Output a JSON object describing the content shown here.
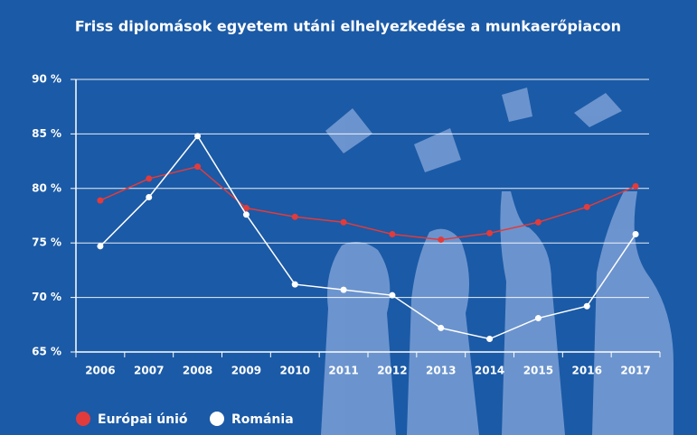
{
  "chart_data": {
    "type": "line",
    "title": "Friss diplomások egyetem utáni elhelyezkedése a munkaerőpiacon",
    "categories": [
      "2006",
      "2007",
      "2008",
      "2009",
      "2010",
      "2011",
      "2012",
      "2013",
      "2014",
      "2015",
      "2016",
      "2017"
    ],
    "series": [
      {
        "name": "Európai únió",
        "color": "#e23b3b",
        "values": [
          78.9,
          80.9,
          82.0,
          78.2,
          77.4,
          76.9,
          75.8,
          75.3,
          75.9,
          76.9,
          78.3,
          80.2
        ]
      },
      {
        "name": "Románia",
        "color": "#ffffff",
        "values": [
          74.7,
          79.2,
          84.8,
          77.6,
          71.2,
          70.7,
          70.2,
          67.2,
          66.2,
          68.1,
          69.2,
          75.8
        ]
      }
    ],
    "ylim": [
      65,
      90
    ],
    "yticks": [
      {
        "value": 65,
        "label": "65 %"
      },
      {
        "value": 70,
        "label": "70 %"
      },
      {
        "value": 75,
        "label": "75 %"
      },
      {
        "value": 80,
        "label": "80 %"
      },
      {
        "value": 85,
        "label": "85 %"
      },
      {
        "value": 90,
        "label": "90 %"
      }
    ],
    "grid": true
  }
}
